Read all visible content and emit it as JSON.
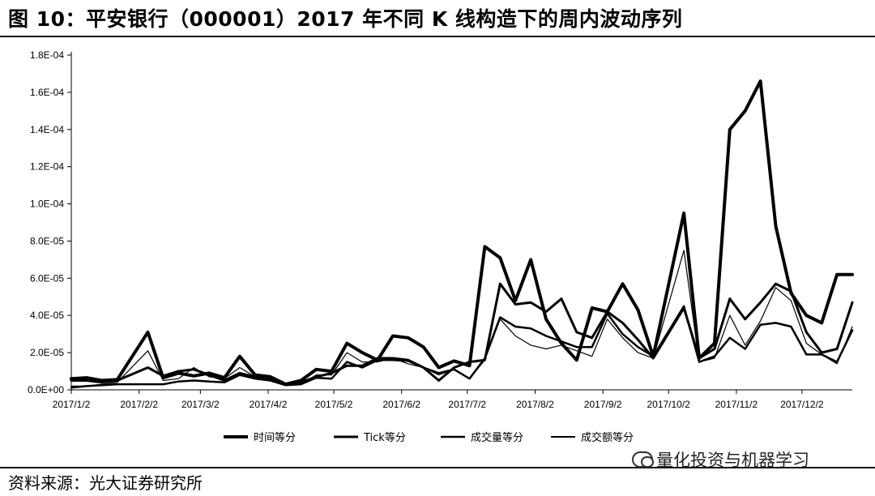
{
  "figure": {
    "title": "图 10：平安银行（000001）2017 年不同 K 线构造下的周内波动序列",
    "source": "资料来源：光大证券研究所",
    "watermark": "量化投资与机器学习"
  },
  "chart_data": {
    "type": "line",
    "title": "",
    "xlabel": "",
    "ylabel": "",
    "ylim": [
      0,
      0.00018
    ],
    "yticks": [
      "0.0E+00",
      "2.0E-05",
      "4.0E-05",
      "6.0E-05",
      "8.0E-05",
      "1.0E-04",
      "1.2E-04",
      "1.4E-04",
      "1.6E-04",
      "1.8E-04"
    ],
    "xticks": [
      "2017/1/2",
      "2017/2/2",
      "2017/3/2",
      "2017/4/2",
      "2017/5/2",
      "2017/6/2",
      "2017/7/2",
      "2017/8/2",
      "2017/9/2",
      "2017/10/2",
      "2017/11/2",
      "2017/12/2"
    ],
    "grid": false,
    "legend_position": "bottom",
    "x_start": "2017/1/2",
    "x_end": "2017/12/25",
    "x": [
      "2017/1/2",
      "2017/1/9",
      "2017/1/16",
      "2017/1/23",
      "2017/2/6",
      "2017/2/13",
      "2017/2/20",
      "2017/2/27",
      "2017/3/6",
      "2017/3/13",
      "2017/3/20",
      "2017/3/27",
      "2017/4/3",
      "2017/4/10",
      "2017/4/17",
      "2017/4/24",
      "2017/5/1",
      "2017/5/8",
      "2017/5/15",
      "2017/5/22",
      "2017/5/29",
      "2017/6/5",
      "2017/6/12",
      "2017/6/19",
      "2017/6/26",
      "2017/7/3",
      "2017/7/10",
      "2017/7/17",
      "2017/7/24",
      "2017/7/31",
      "2017/8/7",
      "2017/8/14",
      "2017/8/21",
      "2017/8/28",
      "2017/9/4",
      "2017/9/11",
      "2017/9/18",
      "2017/9/25",
      "2017/10/9",
      "2017/10/16",
      "2017/10/23",
      "2017/10/30",
      "2017/11/6",
      "2017/11/13",
      "2017/11/20",
      "2017/11/27",
      "2017/12/4",
      "2017/12/11",
      "2017/12/18",
      "2017/12/25"
    ],
    "series": [
      {
        "name": "时间等分",
        "color": "#000000",
        "width": 4,
        "values": [
          6e-06,
          6.5e-06,
          5e-06,
          5.5e-06,
          3.1e-05,
          6.5e-06,
          9e-06,
          7.5e-06,
          9e-06,
          6.5e-06,
          1.8e-05,
          8e-06,
          7e-06,
          3e-06,
          5e-06,
          1.1e-05,
          1e-05,
          2.5e-05,
          2e-05,
          1.6e-05,
          2.9e-05,
          2.8e-05,
          2.3e-05,
          1.2e-05,
          1.55e-05,
          1.3e-05,
          7.7e-05,
          7.1e-05,
          4.8e-05,
          7e-05,
          3.8e-05,
          2.5e-05,
          1.6e-05,
          4.4e-05,
          4.2e-05,
          5.7e-05,
          4.3e-05,
          1.8e-05,
          9.5e-05,
          1.7e-05,
          2.5e-05,
          0.00014,
          0.00015,
          0.000166,
          8.8e-05,
          5.2e-05,
          4e-05,
          3.6e-05,
          6.2e-05,
          6.2e-05
        ]
      },
      {
        "name": "Tick等分",
        "color": "#000000",
        "width": 3,
        "values": [
          5e-06,
          5e-06,
          4e-06,
          5e-06,
          1.2e-05,
          7.5e-06,
          1e-05,
          1.1e-05,
          8e-06,
          5e-06,
          9e-06,
          7e-06,
          6e-06,
          3e-06,
          4e-06,
          7e-06,
          9e-06,
          1.3e-05,
          1.3e-05,
          1.7e-05,
          1.7e-05,
          1.6e-05,
          1.2e-05,
          5e-06,
          1.2e-05,
          1.5e-05,
          1.6e-05,
          5.7e-05,
          4.6e-05,
          4.7e-05,
          4.2e-05,
          4.9e-05,
          3.1e-05,
          2.8e-05,
          4.2e-05,
          3.6e-05,
          2.7e-05,
          1.7e-05,
          4.4e-05,
          1.7e-05,
          2.2e-05,
          4.9e-05,
          3.8e-05,
          4.7e-05,
          5.7e-05,
          5.3e-05,
          3.1e-05,
          2e-05,
          2.2e-05,
          4.7e-05
        ]
      },
      {
        "name": "成交量等分",
        "color": "#000000",
        "width": 2.5,
        "values": [
          1.2e-06,
          2e-06,
          2.5e-06,
          3e-06,
          3e-06,
          3e-06,
          4.5e-06,
          5e-06,
          4.5e-06,
          4e-06,
          8e-06,
          6e-06,
          5e-06,
          2.5e-06,
          3e-06,
          6.5e-06,
          6e-06,
          1.5e-05,
          1.2e-05,
          1.6e-05,
          1.6e-05,
          1.55e-05,
          1.2e-05,
          9e-06,
          1.1e-05,
          6e-06,
          1.7e-05,
          3.9e-05,
          3.4e-05,
          3.3e-05,
          2.9e-05,
          2.6e-05,
          2.3e-05,
          2.3e-05,
          4.1e-05,
          3e-05,
          2.3e-05,
          1.8e-05,
          4.5e-05,
          1.5e-05,
          1.8e-05,
          2.8e-05,
          2.2e-05,
          3.5e-05,
          3.6e-05,
          3.4e-05,
          1.9e-05,
          1.9e-05,
          1.5e-05,
          3.2e-05
        ]
      },
      {
        "name": "成交额等分",
        "color": "#000000",
        "width": 1.2,
        "values": [
          2e-06,
          2e-06,
          3e-06,
          4e-06,
          2.1e-05,
          5e-06,
          6e-06,
          1.2e-05,
          7e-06,
          6e-06,
          1.2e-05,
          7e-06,
          5e-06,
          2.5e-06,
          3e-06,
          8e-06,
          8e-06,
          2e-05,
          1.5e-05,
          1.5e-05,
          1.7e-05,
          1.4e-05,
          1.2e-05,
          8e-06,
          1.1e-05,
          6e-06,
          1.6e-05,
          3.8e-05,
          2.9e-05,
          2.4e-05,
          2.2e-05,
          2.4e-05,
          2.1e-05,
          1.8e-05,
          3.8e-05,
          2.8e-05,
          2e-05,
          1.7e-05,
          7.5e-05,
          1.5e-05,
          1.7e-05,
          4e-05,
          2.4e-05,
          3.7e-05,
          5.5e-05,
          4.8e-05,
          2.5e-05,
          1.9e-05,
          1.4e-05,
          3.4e-05
        ]
      }
    ]
  }
}
